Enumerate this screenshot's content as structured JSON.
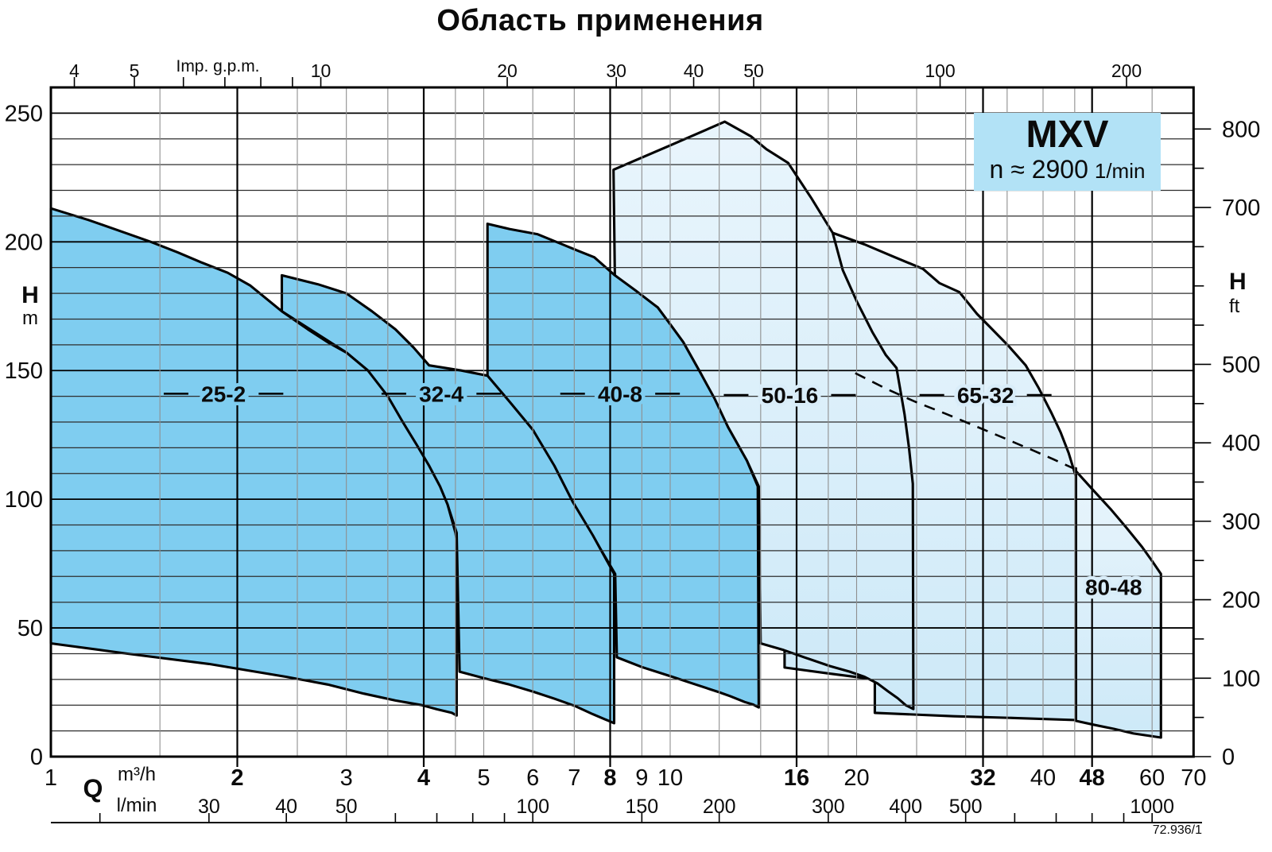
{
  "title": "Область применения",
  "legend": {
    "model": "MXV",
    "speed": "n ≈ 2900",
    "speed_unit": "1/min"
  },
  "footer_ref": "72.936/1",
  "colors": {
    "dark_fill": "#7fcdf0",
    "light_fill_top": "#e9f5fc",
    "light_fill_bottom": "#cde9f8",
    "legend_bg": "#b2e2f6",
    "line": "#000000",
    "grid_minor_v": "#8f8f8f",
    "grid_minor_h": "#2e2e2e"
  },
  "axes": {
    "x_bottom": {
      "quantity_label": "Q",
      "unit_row1": "m³/h",
      "unit_row2": "l/min",
      "m3h_ticks": [
        {
          "v": 1,
          "bold": false
        },
        {
          "v": 2,
          "bold": true
        },
        {
          "v": 3,
          "bold": false
        },
        {
          "v": 4,
          "bold": true
        },
        {
          "v": 5,
          "bold": false
        },
        {
          "v": 6,
          "bold": false
        },
        {
          "v": 7,
          "bold": false
        },
        {
          "v": 8,
          "bold": true
        },
        {
          "v": 9,
          "bold": false
        },
        {
          "v": 10,
          "bold": false
        },
        {
          "v": 16,
          "bold": true
        },
        {
          "v": 20,
          "bold": false
        },
        {
          "v": 32,
          "bold": true
        },
        {
          "v": 40,
          "bold": false
        },
        {
          "v": 48,
          "bold": true
        },
        {
          "v": 60,
          "bold": false
        },
        {
          "v": 70,
          "bold": false
        }
      ],
      "lmin_per_m3h": 16.667,
      "lmin_ticks": [
        20,
        30,
        40,
        50,
        60,
        70,
        80,
        90,
        100,
        150,
        200,
        300,
        400,
        500,
        600,
        700,
        800,
        900,
        1000
      ],
      "lmin_labels": [
        30,
        40,
        50,
        100,
        150,
        200,
        300,
        400,
        500,
        1000
      ]
    },
    "x_top": {
      "unit": "Imp. g.p.m.",
      "m3h_per_gpm": 0.2728,
      "ticks": [
        4,
        5,
        6,
        7,
        8,
        9,
        10,
        20,
        30,
        40,
        50,
        100,
        200
      ],
      "labels": [
        4,
        5,
        10,
        20,
        30,
        40,
        50,
        100,
        200
      ]
    },
    "y_left": {
      "symbol": "H",
      "unit": "m",
      "labels": [
        0,
        50,
        100,
        150,
        200,
        250
      ]
    },
    "y_right": {
      "symbol": "H",
      "unit": "ft",
      "labels": [
        0,
        100,
        200,
        300,
        400,
        500,
        700,
        800
      ],
      "tick_step": 50,
      "max": 800,
      "m_per_ft": 0.3048
    }
  },
  "grid": {
    "x_minor": [
      1.5,
      2.5,
      3,
      3.5,
      4.5,
      5,
      6,
      7,
      9,
      10,
      12,
      14,
      18,
      20,
      25,
      30,
      35,
      40,
      45,
      60
    ],
    "x_major": [
      2,
      4,
      8,
      16,
      32,
      48
    ],
    "y_step": 10,
    "y_max": 250,
    "y_major_every": 50
  },
  "chart_data": {
    "type": "area",
    "title": "Область применения",
    "x_unit": "m³/h",
    "y_unit": "m",
    "x_scale": "log",
    "x_range": [
      1,
      70
    ],
    "y_range": [
      0,
      260
    ],
    "regions": [
      {
        "name": "80-48",
        "label": "80-48",
        "shade": "light",
        "label_dashes": false,
        "label_pos": {
          "q": 52,
          "h": 66
        },
        "points": [
          [
            44.8,
            112
          ],
          [
            48,
            104
          ],
          [
            51.5,
            96
          ],
          [
            54.5,
            89
          ],
          [
            57.8,
            81.5
          ],
          [
            60,
            76
          ],
          [
            62,
            71
          ],
          [
            62,
            7.4
          ],
          [
            56,
            9
          ],
          [
            52,
            10.8
          ],
          [
            48.5,
            12.3
          ],
          [
            45.2,
            13.9
          ],
          [
            45.2,
            112
          ]
        ]
      },
      {
        "name": "65-32",
        "label": "65-32",
        "shade": "light",
        "label_dashes": true,
        "label_pos": {
          "q": 32.3,
          "h": 140.5
        },
        "points": [
          [
            18.3,
            203.5
          ],
          [
            20.6,
            199
          ],
          [
            22.8,
            194.5
          ],
          [
            25.6,
            189.5
          ],
          [
            27.2,
            184
          ],
          [
            29.3,
            180.5
          ],
          [
            31.3,
            172
          ],
          [
            33,
            166.4
          ],
          [
            35.2,
            159.5
          ],
          [
            37.5,
            152
          ],
          [
            39.4,
            143
          ],
          [
            41.3,
            133.4
          ],
          [
            42.7,
            126
          ],
          [
            44,
            118
          ],
          [
            45.2,
            108.7
          ],
          [
            45.2,
            14.2
          ],
          [
            36,
            15
          ],
          [
            28.7,
            15.7
          ],
          [
            21.4,
            17
          ],
          [
            21.4,
            30
          ],
          [
            17.9,
            32.4
          ],
          [
            15.3,
            34.6
          ],
          [
            15.3,
            41.4
          ],
          [
            15.3,
            170
          ],
          [
            18.3,
            203.5
          ]
        ]
      },
      {
        "name": "50-16",
        "label": "50-16",
        "shade": "light",
        "label_dashes": true,
        "label_pos": {
          "q": 15.6,
          "h": 140.5
        },
        "points": [
          [
            8.1,
            228
          ],
          [
            10,
            237.5
          ],
          [
            12.25,
            246.7
          ],
          [
            13.5,
            241
          ],
          [
            14.3,
            236
          ],
          [
            15.5,
            230.7
          ],
          [
            16.9,
            217
          ],
          [
            18.3,
            203.5
          ],
          [
            19,
            189
          ],
          [
            20,
            177
          ],
          [
            21.2,
            165
          ],
          [
            22.3,
            156
          ],
          [
            23.2,
            151
          ],
          [
            23.9,
            133
          ],
          [
            24.3,
            120
          ],
          [
            24.65,
            106
          ],
          [
            24.7,
            18.5
          ],
          [
            24,
            20
          ],
          [
            23.3,
            22.7
          ],
          [
            22.5,
            25.3
          ],
          [
            21.6,
            28.5
          ],
          [
            20.6,
            31
          ],
          [
            19.5,
            33
          ],
          [
            18.1,
            35.2
          ],
          [
            16.5,
            38.5
          ],
          [
            15.25,
            41.4
          ],
          [
            14,
            44
          ],
          [
            13.9,
            105
          ],
          [
            13.3,
            115
          ],
          [
            12.4,
            128
          ],
          [
            11.2,
            149
          ],
          [
            10.5,
            161
          ],
          [
            9.55,
            174.5
          ],
          [
            8.6,
            182
          ],
          [
            8.14,
            186.8
          ],
          [
            8.1,
            228
          ]
        ]
      },
      {
        "name": "40-8",
        "label": "40-8",
        "shade": "dark",
        "label_dashes": true,
        "label_pos": {
          "q": 8.3,
          "h": 141
        },
        "points": [
          [
            5.07,
            207
          ],
          [
            5.5,
            205
          ],
          [
            6.1,
            203
          ],
          [
            6.7,
            199
          ],
          [
            7.1,
            196.5
          ],
          [
            7.54,
            194
          ],
          [
            8.14,
            187
          ],
          [
            8.8,
            181
          ],
          [
            9.55,
            174.5
          ],
          [
            10,
            168
          ],
          [
            10.5,
            161
          ],
          [
            11.2,
            149
          ],
          [
            11.8,
            139
          ],
          [
            12.4,
            128
          ],
          [
            13.3,
            115
          ],
          [
            13.85,
            105
          ],
          [
            13.9,
            19.1
          ],
          [
            13.6,
            20.3
          ],
          [
            13.2,
            21.2
          ],
          [
            12.5,
            23.5
          ],
          [
            12,
            25
          ],
          [
            11,
            28
          ],
          [
            10.2,
            30.6
          ],
          [
            9.5,
            33
          ],
          [
            9,
            34.8
          ],
          [
            8.2,
            38.6
          ],
          [
            8.15,
            71
          ],
          [
            6.96,
            99
          ],
          [
            6,
            127
          ],
          [
            5.07,
            148
          ],
          [
            5.07,
            207
          ]
        ]
      },
      {
        "name": "32-4",
        "label": "32-4",
        "shade": "dark",
        "label_dashes": true,
        "label_pos": {
          "q": 4.27,
          "h": 141
        },
        "points": [
          [
            2.36,
            187
          ],
          [
            2.7,
            183.5
          ],
          [
            3,
            180
          ],
          [
            3.3,
            173
          ],
          [
            3.6,
            166
          ],
          [
            3.85,
            159
          ],
          [
            4.08,
            152
          ],
          [
            4.6,
            150
          ],
          [
            5.07,
            148
          ],
          [
            5.5,
            138
          ],
          [
            6,
            127
          ],
          [
            6.5,
            113
          ],
          [
            6.96,
            99
          ],
          [
            7.5,
            86
          ],
          [
            8.12,
            71
          ],
          [
            8.12,
            13
          ],
          [
            7.5,
            16.5
          ],
          [
            7,
            19.8
          ],
          [
            6.5,
            22.5
          ],
          [
            6,
            25.3
          ],
          [
            5.5,
            28
          ],
          [
            5,
            30.5
          ],
          [
            4.57,
            33
          ],
          [
            4.52,
            87
          ],
          [
            4.37,
            98
          ],
          [
            4.08,
            113
          ],
          [
            3.7,
            130
          ],
          [
            3.25,
            150
          ],
          [
            3,
            157
          ],
          [
            2.36,
            173
          ],
          [
            2.36,
            187
          ]
        ]
      },
      {
        "name": "25-2",
        "label": "25-2",
        "shade": "dark",
        "label_dashes": true,
        "label_pos": {
          "q": 1.9,
          "h": 141
        },
        "points": [
          [
            1,
            213
          ],
          [
            1.15,
            208.5
          ],
          [
            1.3,
            204
          ],
          [
            1.45,
            200
          ],
          [
            1.6,
            196
          ],
          [
            1.75,
            192
          ],
          [
            1.93,
            188
          ],
          [
            2.1,
            183
          ],
          [
            2.36,
            173
          ],
          [
            2.6,
            166
          ],
          [
            2.8,
            161
          ],
          [
            3,
            157
          ],
          [
            3.25,
            150
          ],
          [
            3.5,
            140
          ],
          [
            3.7,
            130
          ],
          [
            3.9,
            121
          ],
          [
            4.08,
            113
          ],
          [
            4.25,
            105
          ],
          [
            4.37,
            98
          ],
          [
            4.5,
            87
          ],
          [
            4.52,
            84
          ],
          [
            4.52,
            16
          ],
          [
            4.44,
            17
          ],
          [
            4.2,
            18.4
          ],
          [
            3.97,
            20
          ],
          [
            3.6,
            21.8
          ],
          [
            3.2,
            24.5
          ],
          [
            2.8,
            28
          ],
          [
            2.4,
            31
          ],
          [
            1.8,
            36
          ],
          [
            1.33,
            40
          ],
          [
            1,
            44
          ],
          [
            1,
            213
          ]
        ]
      }
    ],
    "dashed_line": [
      [
        19.9,
        149
      ],
      [
        22.3,
        143
      ],
      [
        24.8,
        138
      ],
      [
        28,
        133
      ],
      [
        31.4,
        128
      ],
      [
        34.8,
        123.5
      ],
      [
        38.5,
        119
      ],
      [
        41.6,
        115.5
      ],
      [
        44.8,
        112
      ]
    ]
  }
}
